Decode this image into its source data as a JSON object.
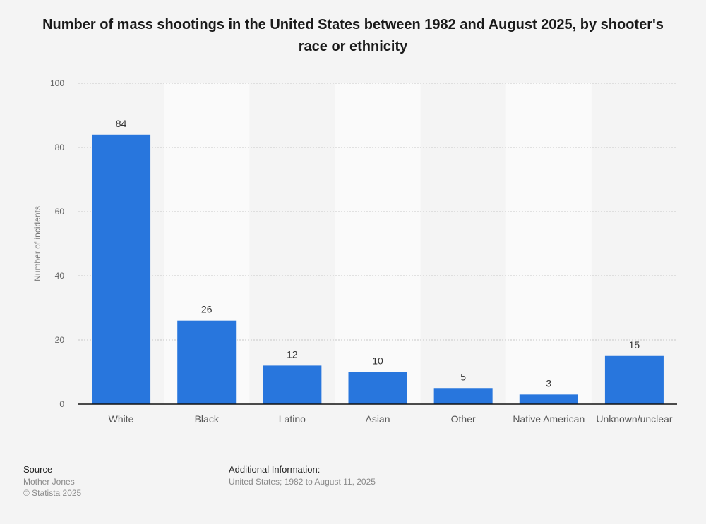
{
  "chart_data": {
    "type": "bar",
    "title": "Number of mass shootings in the United States between 1982 and August 2025, by shooter's race or ethnicity",
    "xlabel": "",
    "ylabel": "Number of incidents",
    "categories": [
      "White",
      "Black",
      "Latino",
      "Asian",
      "Other",
      "Native American",
      "Unknown/unclear"
    ],
    "values": [
      84,
      26,
      12,
      10,
      5,
      3,
      15
    ],
    "data_labels": [
      "84",
      "26",
      "12",
      "10",
      "5",
      "3",
      "15"
    ],
    "ylim": [
      0,
      100
    ],
    "yticks": [
      0,
      20,
      40,
      60,
      80,
      100
    ],
    "ytick_labels": [
      "0",
      "20",
      "40",
      "60",
      "80",
      "100"
    ],
    "grid": true,
    "legend": "none",
    "bar_color": "#2876dd"
  },
  "footer": {
    "source_label": "Source",
    "source_lines": [
      "Mother Jones",
      "© Statista 2025"
    ],
    "additional_label": "Additional Information:",
    "additional_text": "United States; 1982 to August 11, 2025"
  }
}
